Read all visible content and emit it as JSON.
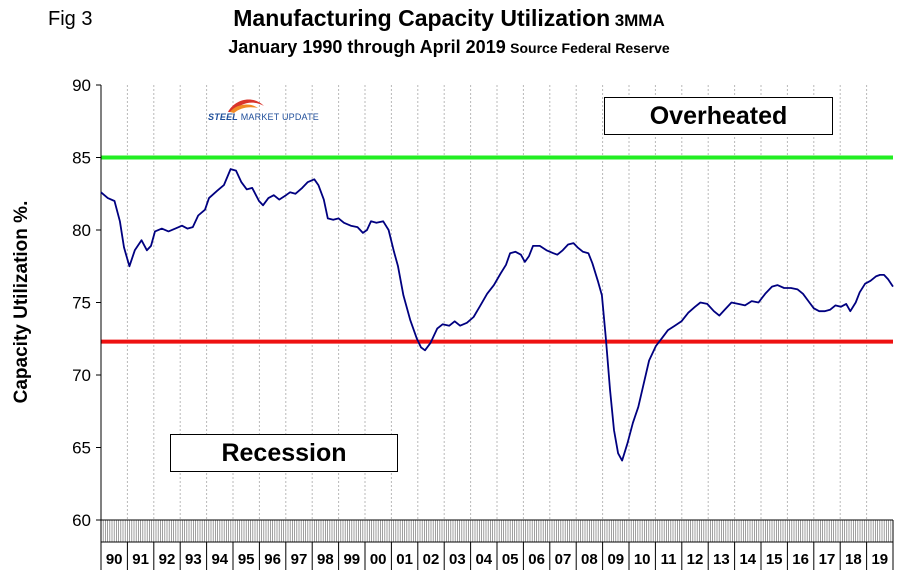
{
  "figure": {
    "fig_label": "Fig 3",
    "title_main": "Manufacturing Capacity Utilization",
    "title_main_suffix": "3MMA",
    "title_sub": "January 1990 through April 2019",
    "title_sub_suffix": "Source Federal Reserve",
    "logo_text_a": "STEEL",
    "logo_text_b": " MARKET UPDATE",
    "annotation_overheated": "Overheated",
    "annotation_recession": "Recession"
  },
  "chart_data": {
    "type": "line",
    "ylabel": "Capacity Utilization %.",
    "xlabel": "",
    "ylim": [
      60,
      90
    ],
    "yticks": [
      60,
      65,
      70,
      75,
      80,
      85,
      90
    ],
    "xlim": [
      1990.0,
      2019.333
    ],
    "x_tick_labels": [
      "90",
      "91",
      "92",
      "93",
      "94",
      "95",
      "96",
      "97",
      "98",
      "99",
      "00",
      "01",
      "02",
      "03",
      "04",
      "05",
      "06",
      "07",
      "08",
      "09",
      "10",
      "11",
      "12",
      "13",
      "14",
      "15",
      "16",
      "17",
      "18",
      "19"
    ],
    "grid": "vertical",
    "colors": {
      "series": "#000080",
      "upper_line": "#22ee22",
      "lower_line": "#ee1111"
    },
    "reference_lines": [
      {
        "label": "Overheated",
        "value": 85.0,
        "color": "#22ee22"
      },
      {
        "label": "Recession",
        "value": 72.3,
        "color": "#ee1111"
      }
    ],
    "series": [
      {
        "values": [
          [
            1990.0,
            82.6
          ],
          [
            1990.25,
            82.2
          ],
          [
            1990.5,
            82.0
          ],
          [
            1990.7,
            80.6
          ],
          [
            1990.85,
            78.8
          ],
          [
            1991.05,
            77.5
          ],
          [
            1991.25,
            78.6
          ],
          [
            1991.5,
            79.3
          ],
          [
            1991.7,
            78.6
          ],
          [
            1991.85,
            78.9
          ],
          [
            1992.0,
            79.9
          ],
          [
            1992.25,
            80.1
          ],
          [
            1992.5,
            79.9
          ],
          [
            1992.75,
            80.1
          ],
          [
            1993.0,
            80.3
          ],
          [
            1993.2,
            80.1
          ],
          [
            1993.4,
            80.2
          ],
          [
            1993.6,
            81.0
          ],
          [
            1993.85,
            81.4
          ],
          [
            1994.0,
            82.2
          ],
          [
            1994.3,
            82.7
          ],
          [
            1994.55,
            83.1
          ],
          [
            1994.8,
            84.2
          ],
          [
            1995.0,
            84.1
          ],
          [
            1995.2,
            83.3
          ],
          [
            1995.4,
            82.8
          ],
          [
            1995.6,
            82.9
          ],
          [
            1995.85,
            82.0
          ],
          [
            1996.0,
            81.7
          ],
          [
            1996.2,
            82.2
          ],
          [
            1996.4,
            82.4
          ],
          [
            1996.6,
            82.1
          ],
          [
            1996.85,
            82.4
          ],
          [
            1997.0,
            82.6
          ],
          [
            1997.2,
            82.5
          ],
          [
            1997.45,
            82.9
          ],
          [
            1997.65,
            83.3
          ],
          [
            1997.9,
            83.5
          ],
          [
            1998.05,
            83.1
          ],
          [
            1998.25,
            82.1
          ],
          [
            1998.4,
            80.8
          ],
          [
            1998.6,
            80.7
          ],
          [
            1998.8,
            80.8
          ],
          [
            1999.0,
            80.5
          ],
          [
            1999.25,
            80.3
          ],
          [
            1999.5,
            80.2
          ],
          [
            1999.7,
            79.8
          ],
          [
            1999.85,
            80.0
          ],
          [
            2000.0,
            80.6
          ],
          [
            2000.2,
            80.5
          ],
          [
            2000.45,
            80.6
          ],
          [
            2000.65,
            80.0
          ],
          [
            2000.85,
            78.5
          ],
          [
            2001.0,
            77.5
          ],
          [
            2001.2,
            75.5
          ],
          [
            2001.45,
            73.8
          ],
          [
            2001.7,
            72.5
          ],
          [
            2001.85,
            71.9
          ],
          [
            2002.0,
            71.7
          ],
          [
            2002.2,
            72.2
          ],
          [
            2002.45,
            73.2
          ],
          [
            2002.65,
            73.5
          ],
          [
            2002.9,
            73.4
          ],
          [
            2003.1,
            73.7
          ],
          [
            2003.3,
            73.4
          ],
          [
            2003.55,
            73.6
          ],
          [
            2003.8,
            74.0
          ],
          [
            2004.05,
            74.8
          ],
          [
            2004.3,
            75.6
          ],
          [
            2004.55,
            76.2
          ],
          [
            2004.8,
            77.0
          ],
          [
            2005.0,
            77.6
          ],
          [
            2005.15,
            78.4
          ],
          [
            2005.35,
            78.5
          ],
          [
            2005.55,
            78.3
          ],
          [
            2005.7,
            77.8
          ],
          [
            2005.85,
            78.2
          ],
          [
            2006.0,
            78.9
          ],
          [
            2006.25,
            78.9
          ],
          [
            2006.5,
            78.6
          ],
          [
            2006.75,
            78.4
          ],
          [
            2006.9,
            78.3
          ],
          [
            2007.1,
            78.6
          ],
          [
            2007.3,
            79.0
          ],
          [
            2007.5,
            79.1
          ],
          [
            2007.65,
            78.8
          ],
          [
            2007.85,
            78.5
          ],
          [
            2008.05,
            78.4
          ],
          [
            2008.2,
            77.7
          ],
          [
            2008.4,
            76.5
          ],
          [
            2008.55,
            75.5
          ],
          [
            2008.7,
            72.5
          ],
          [
            2008.85,
            69.0
          ],
          [
            2009.0,
            66.2
          ],
          [
            2009.15,
            64.6
          ],
          [
            2009.3,
            64.1
          ],
          [
            2009.5,
            65.3
          ],
          [
            2009.7,
            66.7
          ],
          [
            2009.9,
            67.8
          ],
          [
            2010.1,
            69.4
          ],
          [
            2010.3,
            71.0
          ],
          [
            2010.55,
            72.0
          ],
          [
            2010.8,
            72.6
          ],
          [
            2011.0,
            73.1
          ],
          [
            2011.25,
            73.4
          ],
          [
            2011.5,
            73.7
          ],
          [
            2011.75,
            74.3
          ],
          [
            2012.0,
            74.7
          ],
          [
            2012.2,
            75.0
          ],
          [
            2012.45,
            74.9
          ],
          [
            2012.7,
            74.4
          ],
          [
            2012.9,
            74.1
          ],
          [
            2013.1,
            74.5
          ],
          [
            2013.35,
            75.0
          ],
          [
            2013.6,
            74.9
          ],
          [
            2013.85,
            74.8
          ],
          [
            2014.1,
            75.1
          ],
          [
            2014.35,
            75.0
          ],
          [
            2014.6,
            75.6
          ],
          [
            2014.85,
            76.1
          ],
          [
            2015.05,
            76.2
          ],
          [
            2015.3,
            76.0
          ],
          [
            2015.55,
            76.0
          ],
          [
            2015.8,
            75.9
          ],
          [
            2016.0,
            75.6
          ],
          [
            2016.2,
            75.1
          ],
          [
            2016.4,
            74.6
          ],
          [
            2016.6,
            74.4
          ],
          [
            2016.8,
            74.4
          ],
          [
            2017.0,
            74.5
          ],
          [
            2017.2,
            74.8
          ],
          [
            2017.4,
            74.7
          ],
          [
            2017.6,
            74.9
          ],
          [
            2017.75,
            74.4
          ],
          [
            2017.95,
            75.0
          ],
          [
            2018.1,
            75.7
          ],
          [
            2018.3,
            76.3
          ],
          [
            2018.5,
            76.5
          ],
          [
            2018.7,
            76.8
          ],
          [
            2018.85,
            76.9
          ],
          [
            2019.0,
            76.9
          ],
          [
            2019.15,
            76.6
          ],
          [
            2019.333,
            76.1
          ]
        ]
      }
    ]
  }
}
